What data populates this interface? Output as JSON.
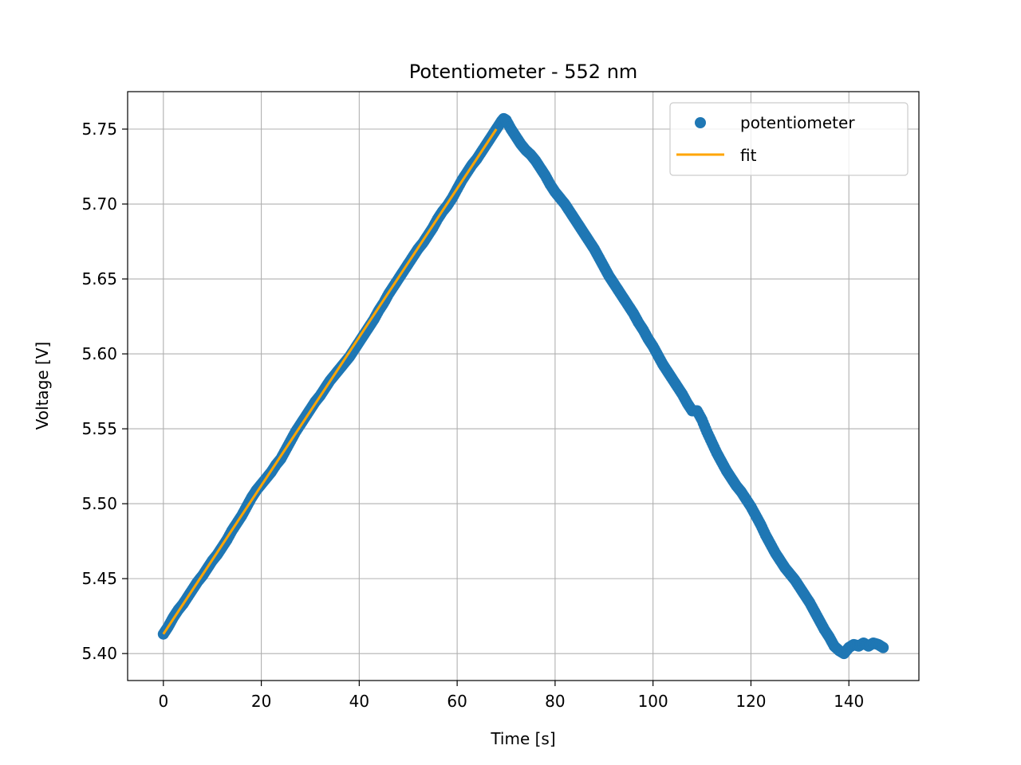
{
  "chart_data": {
    "type": "scatter",
    "title": "Potentiometer - 552 nm",
    "xlabel": "Time [s]",
    "ylabel": "Voltage [V]",
    "xlim": [
      -7.3,
      154.3
    ],
    "ylim": [
      5.382,
      5.775
    ],
    "xticks": [
      0,
      20,
      40,
      60,
      80,
      100,
      120,
      140
    ],
    "yticks": [
      5.4,
      5.45,
      5.5,
      5.55,
      5.6,
      5.65,
      5.7,
      5.75
    ],
    "xtick_labels": [
      "0",
      "20",
      "40",
      "60",
      "80",
      "100",
      "120",
      "140"
    ],
    "ytick_labels": [
      "5.40",
      "5.45",
      "5.50",
      "5.55",
      "5.60",
      "5.65",
      "5.70",
      "5.75"
    ],
    "grid": true,
    "legend_position": "top-right",
    "series": [
      {
        "name": "potentiometer",
        "kind": "scatter",
        "color": "#1f77b4",
        "points": [
          [
            0,
            5.413
          ],
          [
            1,
            5.418
          ],
          [
            2,
            5.424
          ],
          [
            3,
            5.429
          ],
          [
            4,
            5.433
          ],
          [
            5,
            5.438
          ],
          [
            6,
            5.443
          ],
          [
            7,
            5.448
          ],
          [
            8,
            5.452
          ],
          [
            9,
            5.457
          ],
          [
            10,
            5.462
          ],
          [
            11,
            5.466
          ],
          [
            12,
            5.471
          ],
          [
            13,
            5.476
          ],
          [
            14,
            5.482
          ],
          [
            15,
            5.487
          ],
          [
            16,
            5.492
          ],
          [
            17,
            5.498
          ],
          [
            18,
            5.504
          ],
          [
            19,
            5.509
          ],
          [
            20,
            5.513
          ],
          [
            21,
            5.517
          ],
          [
            22,
            5.521
          ],
          [
            23,
            5.526
          ],
          [
            24,
            5.53
          ],
          [
            25,
            5.536
          ],
          [
            26,
            5.542
          ],
          [
            27,
            5.548
          ],
          [
            28,
            5.553
          ],
          [
            29,
            5.558
          ],
          [
            30,
            5.563
          ],
          [
            31,
            5.568
          ],
          [
            32,
            5.572
          ],
          [
            33,
            5.577
          ],
          [
            34,
            5.582
          ],
          [
            35,
            5.586
          ],
          [
            36,
            5.59
          ],
          [
            37,
            5.594
          ],
          [
            38,
            5.598
          ],
          [
            39,
            5.603
          ],
          [
            40,
            5.608
          ],
          [
            41,
            5.613
          ],
          [
            42,
            5.618
          ],
          [
            43,
            5.623
          ],
          [
            44,
            5.629
          ],
          [
            45,
            5.634
          ],
          [
            46,
            5.64
          ],
          [
            47,
            5.645
          ],
          [
            48,
            5.65
          ],
          [
            49,
            5.655
          ],
          [
            50,
            5.66
          ],
          [
            51,
            5.665
          ],
          [
            52,
            5.67
          ],
          [
            53,
            5.674
          ],
          [
            54,
            5.679
          ],
          [
            55,
            5.684
          ],
          [
            56,
            5.69
          ],
          [
            57,
            5.695
          ],
          [
            58,
            5.699
          ],
          [
            59,
            5.704
          ],
          [
            60,
            5.71
          ],
          [
            61,
            5.716
          ],
          [
            62,
            5.721
          ],
          [
            63,
            5.726
          ],
          [
            64,
            5.73
          ],
          [
            65,
            5.735
          ],
          [
            66,
            5.74
          ],
          [
            67,
            5.745
          ],
          [
            68,
            5.75
          ],
          [
            69,
            5.755
          ],
          [
            69.5,
            5.757
          ],
          [
            70,
            5.756
          ],
          [
            71,
            5.75
          ],
          [
            72,
            5.745
          ],
          [
            73,
            5.74
          ],
          [
            74,
            5.736
          ],
          [
            75,
            5.733
          ],
          [
            76,
            5.729
          ],
          [
            77,
            5.724
          ],
          [
            78,
            5.719
          ],
          [
            79,
            5.713
          ],
          [
            80,
            5.708
          ],
          [
            81,
            5.704
          ],
          [
            82,
            5.7
          ],
          [
            83,
            5.695
          ],
          [
            84,
            5.69
          ],
          [
            85,
            5.685
          ],
          [
            86,
            5.68
          ],
          [
            87,
            5.675
          ],
          [
            88,
            5.67
          ],
          [
            89,
            5.664
          ],
          [
            90,
            5.658
          ],
          [
            91,
            5.652
          ],
          [
            92,
            5.647
          ],
          [
            93,
            5.642
          ],
          [
            94,
            5.637
          ],
          [
            95,
            5.632
          ],
          [
            96,
            5.627
          ],
          [
            97,
            5.621
          ],
          [
            98,
            5.616
          ],
          [
            99,
            5.61
          ],
          [
            100,
            5.605
          ],
          [
            101,
            5.599
          ],
          [
            102,
            5.593
          ],
          [
            103,
            5.588
          ],
          [
            104,
            5.583
          ],
          [
            105,
            5.578
          ],
          [
            106,
            5.573
          ],
          [
            107,
            5.567
          ],
          [
            108,
            5.562
          ],
          [
            109,
            5.562
          ],
          [
            110,
            5.556
          ],
          [
            111,
            5.548
          ],
          [
            112,
            5.541
          ],
          [
            113,
            5.534
          ],
          [
            114,
            5.528
          ],
          [
            115,
            5.522
          ],
          [
            116,
            5.517
          ],
          [
            117,
            5.512
          ],
          [
            118,
            5.508
          ],
          [
            119,
            5.503
          ],
          [
            120,
            5.498
          ],
          [
            121,
            5.492
          ],
          [
            122,
            5.486
          ],
          [
            123,
            5.479
          ],
          [
            124,
            5.473
          ],
          [
            125,
            5.467
          ],
          [
            126,
            5.462
          ],
          [
            127,
            5.457
          ],
          [
            128,
            5.453
          ],
          [
            129,
            5.449
          ],
          [
            130,
            5.444
          ],
          [
            131,
            5.439
          ],
          [
            132,
            5.434
          ],
          [
            133,
            5.428
          ],
          [
            134,
            5.422
          ],
          [
            135,
            5.416
          ],
          [
            136,
            5.411
          ],
          [
            137,
            5.405
          ],
          [
            138,
            5.402
          ],
          [
            139,
            5.4
          ],
          [
            140,
            5.404
          ],
          [
            141,
            5.406
          ],
          [
            142,
            5.405
          ],
          [
            143,
            5.407
          ],
          [
            144,
            5.405
          ],
          [
            145,
            5.407
          ],
          [
            146,
            5.406
          ],
          [
            147,
            5.404
          ]
        ]
      },
      {
        "name": "fit",
        "kind": "line",
        "color": "#ffa500",
        "points": [
          [
            0,
            5.413
          ],
          [
            68,
            5.75
          ]
        ]
      }
    ]
  }
}
